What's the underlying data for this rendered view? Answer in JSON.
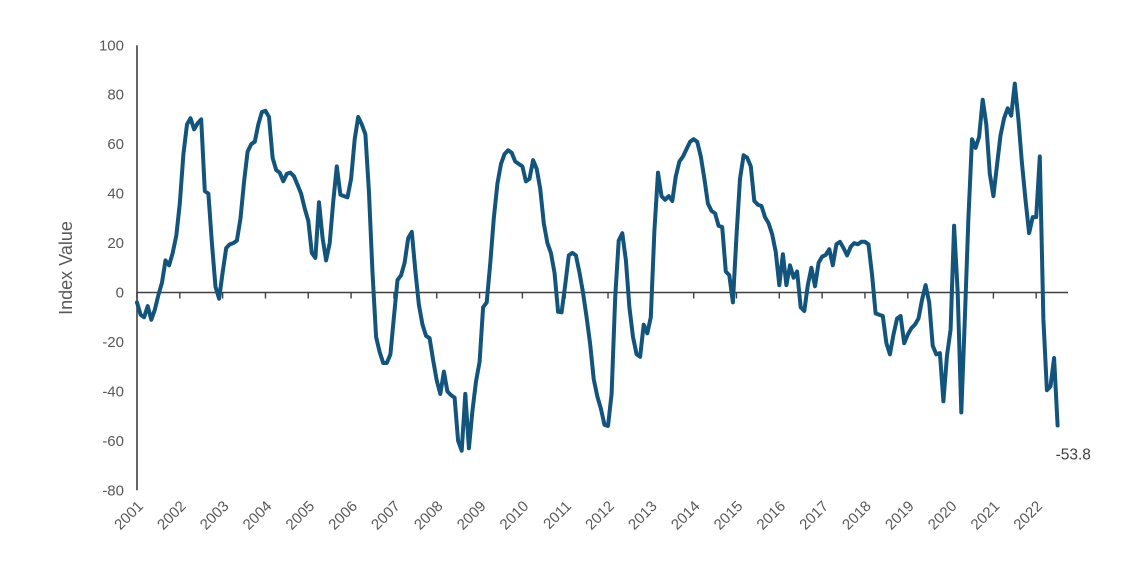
{
  "chart_data": {
    "type": "line",
    "title": "",
    "xlabel": "",
    "ylabel": "Index Value",
    "frequency": "monthly",
    "start_year": 2001,
    "x_range": [
      "2001-01",
      "2022-07"
    ],
    "x_tick_labels": [
      "2001",
      "2002",
      "2003",
      "2004",
      "2005",
      "2006",
      "2007",
      "2008",
      "2009",
      "2010",
      "2011",
      "2012",
      "2013",
      "2014",
      "2015",
      "2016",
      "2017",
      "2018",
      "2019",
      "2020",
      "2021",
      "2022"
    ],
    "y_ticks": [
      100,
      80,
      60,
      40,
      20,
      0,
      -20,
      -40,
      -60,
      -80
    ],
    "ylim": [
      -80,
      100
    ],
    "grid": false,
    "legend": false,
    "colors": {
      "line": "#13547C",
      "axis": "#404040",
      "tick_label": "#595959",
      "axis_title": "#595959",
      "annotation": "#404040",
      "background": "#FFFFFF"
    },
    "series": [
      {
        "name": "Index Value",
        "values": [
          -4,
          -9,
          -10,
          -5.5,
          -11,
          -7,
          -1,
          4,
          13,
          11,
          16,
          23,
          36,
          56,
          68,
          70.5,
          66,
          68.5,
          70,
          41,
          40,
          20,
          2.3,
          -2.5,
          8,
          18,
          19.5,
          20,
          21,
          30,
          45,
          57,
          60,
          61,
          68,
          73,
          73.5,
          71,
          54.5,
          49.5,
          48.5,
          45,
          48,
          48.5,
          47,
          43.5,
          40,
          34,
          29,
          16,
          14,
          36.5,
          22,
          13,
          20,
          37,
          51,
          39.5,
          39,
          38.5,
          46,
          62,
          71,
          68,
          64,
          41,
          8,
          -18,
          -24,
          -28.5,
          -28.5,
          -25,
          -10,
          5,
          7,
          12,
          22,
          24.5,
          9,
          -5,
          -13,
          -17.5,
          -18.5,
          -27.5,
          -35.5,
          -41,
          -32,
          -40,
          -41.5,
          -42.5,
          -60,
          -64,
          -41,
          -63,
          -48,
          -36,
          -28,
          -6,
          -4,
          12,
          30,
          44,
          52,
          56,
          57.5,
          56.5,
          53,
          52,
          51,
          45,
          46,
          53.5,
          50,
          42,
          28,
          20,
          16,
          8,
          -7.8,
          -8,
          3,
          15,
          16,
          15,
          8,
          0,
          -10,
          -21,
          -35,
          -42,
          -47,
          -53.5,
          -54,
          -41,
          -2,
          21,
          24,
          13,
          -6,
          -18,
          -25,
          -26,
          -13,
          -16.5,
          -10,
          25,
          48.5,
          39,
          37.5,
          39,
          37,
          47,
          53,
          55,
          58,
          61,
          62,
          61,
          55,
          46,
          36,
          33,
          32,
          27,
          26.5,
          8.5,
          7,
          -4,
          23,
          46,
          55.5,
          54.5,
          51,
          37,
          35.5,
          35,
          30.5,
          28,
          23.5,
          16.5,
          3,
          15.5,
          3,
          11,
          6,
          8.5,
          -6,
          -7.5,
          3,
          10,
          2.5,
          12,
          14.5,
          15.2,
          17.5,
          11,
          19.5,
          20.5,
          18,
          15,
          18.5,
          20,
          19.5,
          20.5,
          20.5,
          19.5,
          7,
          -8.5,
          -9,
          -9.5,
          -20.5,
          -25,
          -17,
          -10.5,
          -9.5,
          -20.5,
          -17,
          -14.5,
          -13,
          -10.5,
          -3,
          3,
          -4,
          -21.5,
          -25,
          -24.5,
          -44,
          -25.5,
          -15,
          27,
          0,
          -48.5,
          -10,
          30,
          62,
          58.5,
          63,
          78,
          68,
          48,
          39,
          51.5,
          63.5,
          70.5,
          74.5,
          71.5,
          84.5,
          70,
          52.5,
          37.5,
          24,
          30.5,
          30.5,
          55,
          -11,
          -39.5,
          -38,
          -26.5,
          -53.8
        ]
      }
    ],
    "annotations": [
      {
        "text": "-53.8",
        "value": -53.8,
        "attach": "last-point"
      }
    ]
  }
}
